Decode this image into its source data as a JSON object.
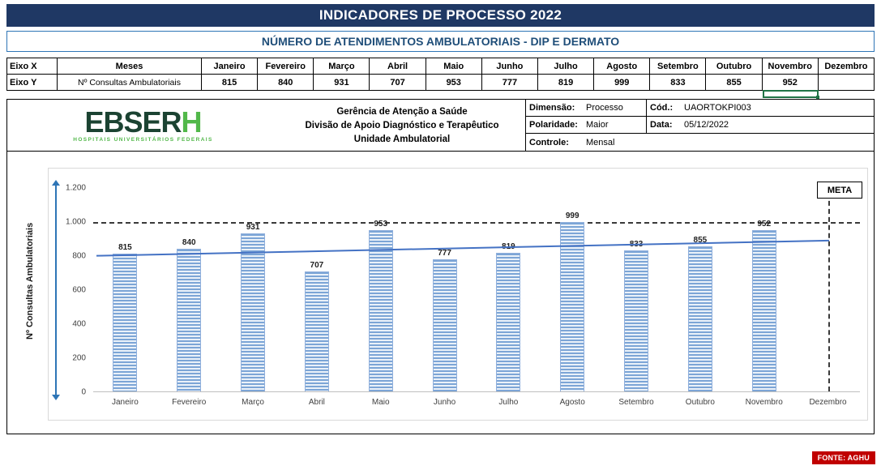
{
  "banner": {
    "title": "INDICADORES DE PROCESSO 2022"
  },
  "subtitle": "NÚMERO DE ATENDIMENTOS AMBULATORIAIS - DIP E DERMATO",
  "data_table": {
    "axis_x_label": "Eixo X",
    "axis_y_label": "Eixo Y",
    "x_series_name": "Meses",
    "y_series_name": "Nº Consultas Ambulatoriais",
    "months": [
      "Janeiro",
      "Fevereiro",
      "Março",
      "Abril",
      "Maio",
      "Junho",
      "Julho",
      "Agosto",
      "Setembro",
      "Outubro",
      "Novembro",
      "Dezembro"
    ],
    "values": [
      815,
      840,
      931,
      707,
      953,
      777,
      819,
      999,
      833,
      855,
      952,
      null
    ]
  },
  "org_header": {
    "logo_main": "EBSER",
    "logo_accent": "H",
    "logo_subtitle": "HOSPITAIS UNIVERSITÁRIOS FEDERAIS",
    "center_lines": [
      "Gerência de Atenção a Saúde",
      "Divisão de Apoio Diagnóstico e Terapêutico",
      "Unidade Ambulatorial"
    ],
    "dimensao_label": "Dimensão:",
    "dimensao_value": "Processo",
    "cod_label": "Cód.:",
    "cod_value": "UAORTOKPI003",
    "polaridade_label": "Polaridade:",
    "polaridade_value": "Maior",
    "data_label": "Data:",
    "data_value": "05/12/2022",
    "controle_label": "Controle:",
    "controle_value": "Mensal"
  },
  "chart_data": {
    "type": "bar",
    "title": "",
    "categories": [
      "Janeiro",
      "Fevereiro",
      "Março",
      "Abril",
      "Maio",
      "Junho",
      "Julho",
      "Agosto",
      "Setembro",
      "Outubro",
      "Novembro",
      "Dezembro"
    ],
    "values": [
      815,
      840,
      931,
      707,
      953,
      777,
      819,
      999,
      833,
      855,
      952,
      null
    ],
    "xlabel": "",
    "ylabel": "Nº Consultas Ambulatoriais",
    "ylim": [
      0,
      1200
    ],
    "ytick_labels": [
      "1.200",
      "1.000",
      "800",
      "600",
      "400",
      "200",
      "0"
    ],
    "grid": false,
    "meta_value": 1000,
    "meta_label": "META",
    "trendline": {
      "start_value": 800,
      "end_value": 890
    },
    "bar_color": "#9DC3E6",
    "trend_color": "#4472C4"
  },
  "footer": {
    "source": "FONTE: AGHU"
  }
}
